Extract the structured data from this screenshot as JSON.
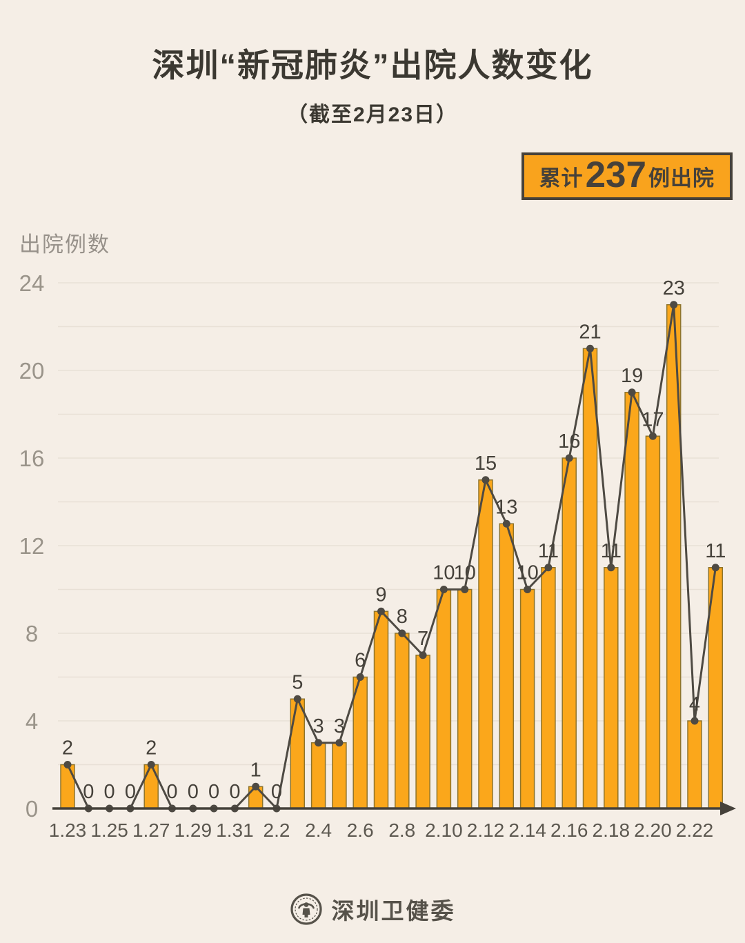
{
  "page": {
    "background": "#F5EEE6"
  },
  "header": {
    "title": "深圳“新冠肺炎”出院人数变化",
    "subtitle": "（截至2月23日）"
  },
  "summary_badge": {
    "prefix": "累计",
    "value": "237",
    "suffix": "例出院",
    "bg_color": "#F9A31D",
    "border_color": "#46413A"
  },
  "chart_data": {
    "type": "bar",
    "overlay": "line-with-dots",
    "title": "深圳“新冠肺炎”出院人数变化",
    "subtitle": "（截至2月23日）",
    "ylabel": "出院例数",
    "xlabel": "",
    "categories": [
      "1.23",
      "1.24",
      "1.25",
      "1.26",
      "1.27",
      "1.28",
      "1.29",
      "1.30",
      "1.31",
      "2.1",
      "2.2",
      "2.3",
      "2.4",
      "2.5",
      "2.6",
      "2.7",
      "2.8",
      "2.9",
      "2.10",
      "2.11",
      "2.12",
      "2.13",
      "2.14",
      "2.15",
      "2.16",
      "2.17",
      "2.18",
      "2.19",
      "2.20",
      "2.21",
      "2.22",
      "2.23"
    ],
    "values": [
      2,
      0,
      0,
      0,
      2,
      0,
      0,
      0,
      0,
      1,
      0,
      5,
      3,
      3,
      6,
      9,
      8,
      7,
      10,
      10,
      15,
      13,
      10,
      11,
      16,
      21,
      11,
      19,
      17,
      23,
      4,
      11
    ],
    "cumulative_total": 237,
    "data_labels": true,
    "yticks": [
      0,
      4,
      8,
      12,
      16,
      20,
      24
    ],
    "ylim": [
      0,
      24
    ],
    "grid": "horizontal every 2, no vertical grid",
    "xtick_labels": [
      "1.23",
      "1.25",
      "1.27",
      "1.29",
      "1.31",
      "2.2",
      "2.4",
      "2.6",
      "2.8",
      "2.10",
      "2.12",
      "2.14",
      "2.16",
      "2.18",
      "2.20",
      "2.22"
    ],
    "legend": "none",
    "colors": {
      "bar_fill": "#FBA71B",
      "bar_stroke": "#8E742C",
      "line": "#4E4A43",
      "dot": "#4E4A43",
      "value_label": "#45413A",
      "ytick_text": "#9A948A",
      "xtick_text": "#5C5850",
      "ylabel_text": "#97918A",
      "axis": "#45413A",
      "grid": "#E8E0D6"
    }
  },
  "footer": {
    "source": "深圳卫健委",
    "logo": "shenzhen-health-commission-seal"
  }
}
